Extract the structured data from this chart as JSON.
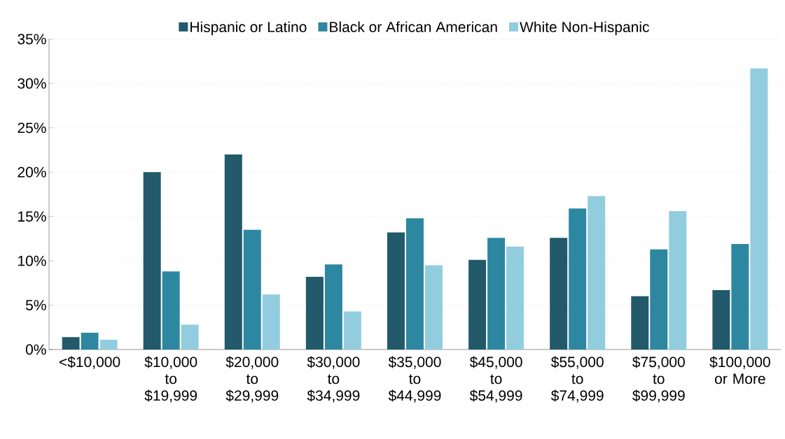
{
  "chart_data": {
    "type": "bar",
    "categories": [
      "<$10,000",
      "$10,000 to $19,999",
      "$20,000 to $29,999",
      "$30,000 to $34,999",
      "$35,000 to $44,999",
      "$45,000 to $54,999",
      "$55,000 to $74,999",
      "$75,000 to $99,999",
      "$100,000 or More"
    ],
    "series": [
      {
        "name": "Hispanic or Latino",
        "color": "#22596b",
        "values": [
          1.4,
          20.0,
          22.0,
          8.2,
          13.2,
          10.1,
          12.6,
          6.0,
          6.7
        ]
      },
      {
        "name": "Black or African American",
        "color": "#2e87a0",
        "values": [
          1.9,
          8.8,
          13.5,
          9.6,
          14.8,
          12.6,
          15.9,
          11.3,
          11.9
        ]
      },
      {
        "name": "White Non-Hispanic",
        "color": "#92cddf",
        "values": [
          1.1,
          2.8,
          6.2,
          4.3,
          9.5,
          11.6,
          17.3,
          15.6,
          31.7
        ]
      }
    ],
    "ylim": [
      0,
      35
    ],
    "yticks": [
      {
        "value": 0,
        "label": "0%"
      },
      {
        "value": 5,
        "label": "5%"
      },
      {
        "value": 10,
        "label": "10%"
      },
      {
        "value": 15,
        "label": "15%"
      },
      {
        "value": 20,
        "label": "20%"
      },
      {
        "value": 25,
        "label": "25%"
      },
      {
        "value": 30,
        "label": "30%"
      },
      {
        "value": 35,
        "label": "35%"
      }
    ],
    "grid": "y",
    "legend": "top"
  }
}
